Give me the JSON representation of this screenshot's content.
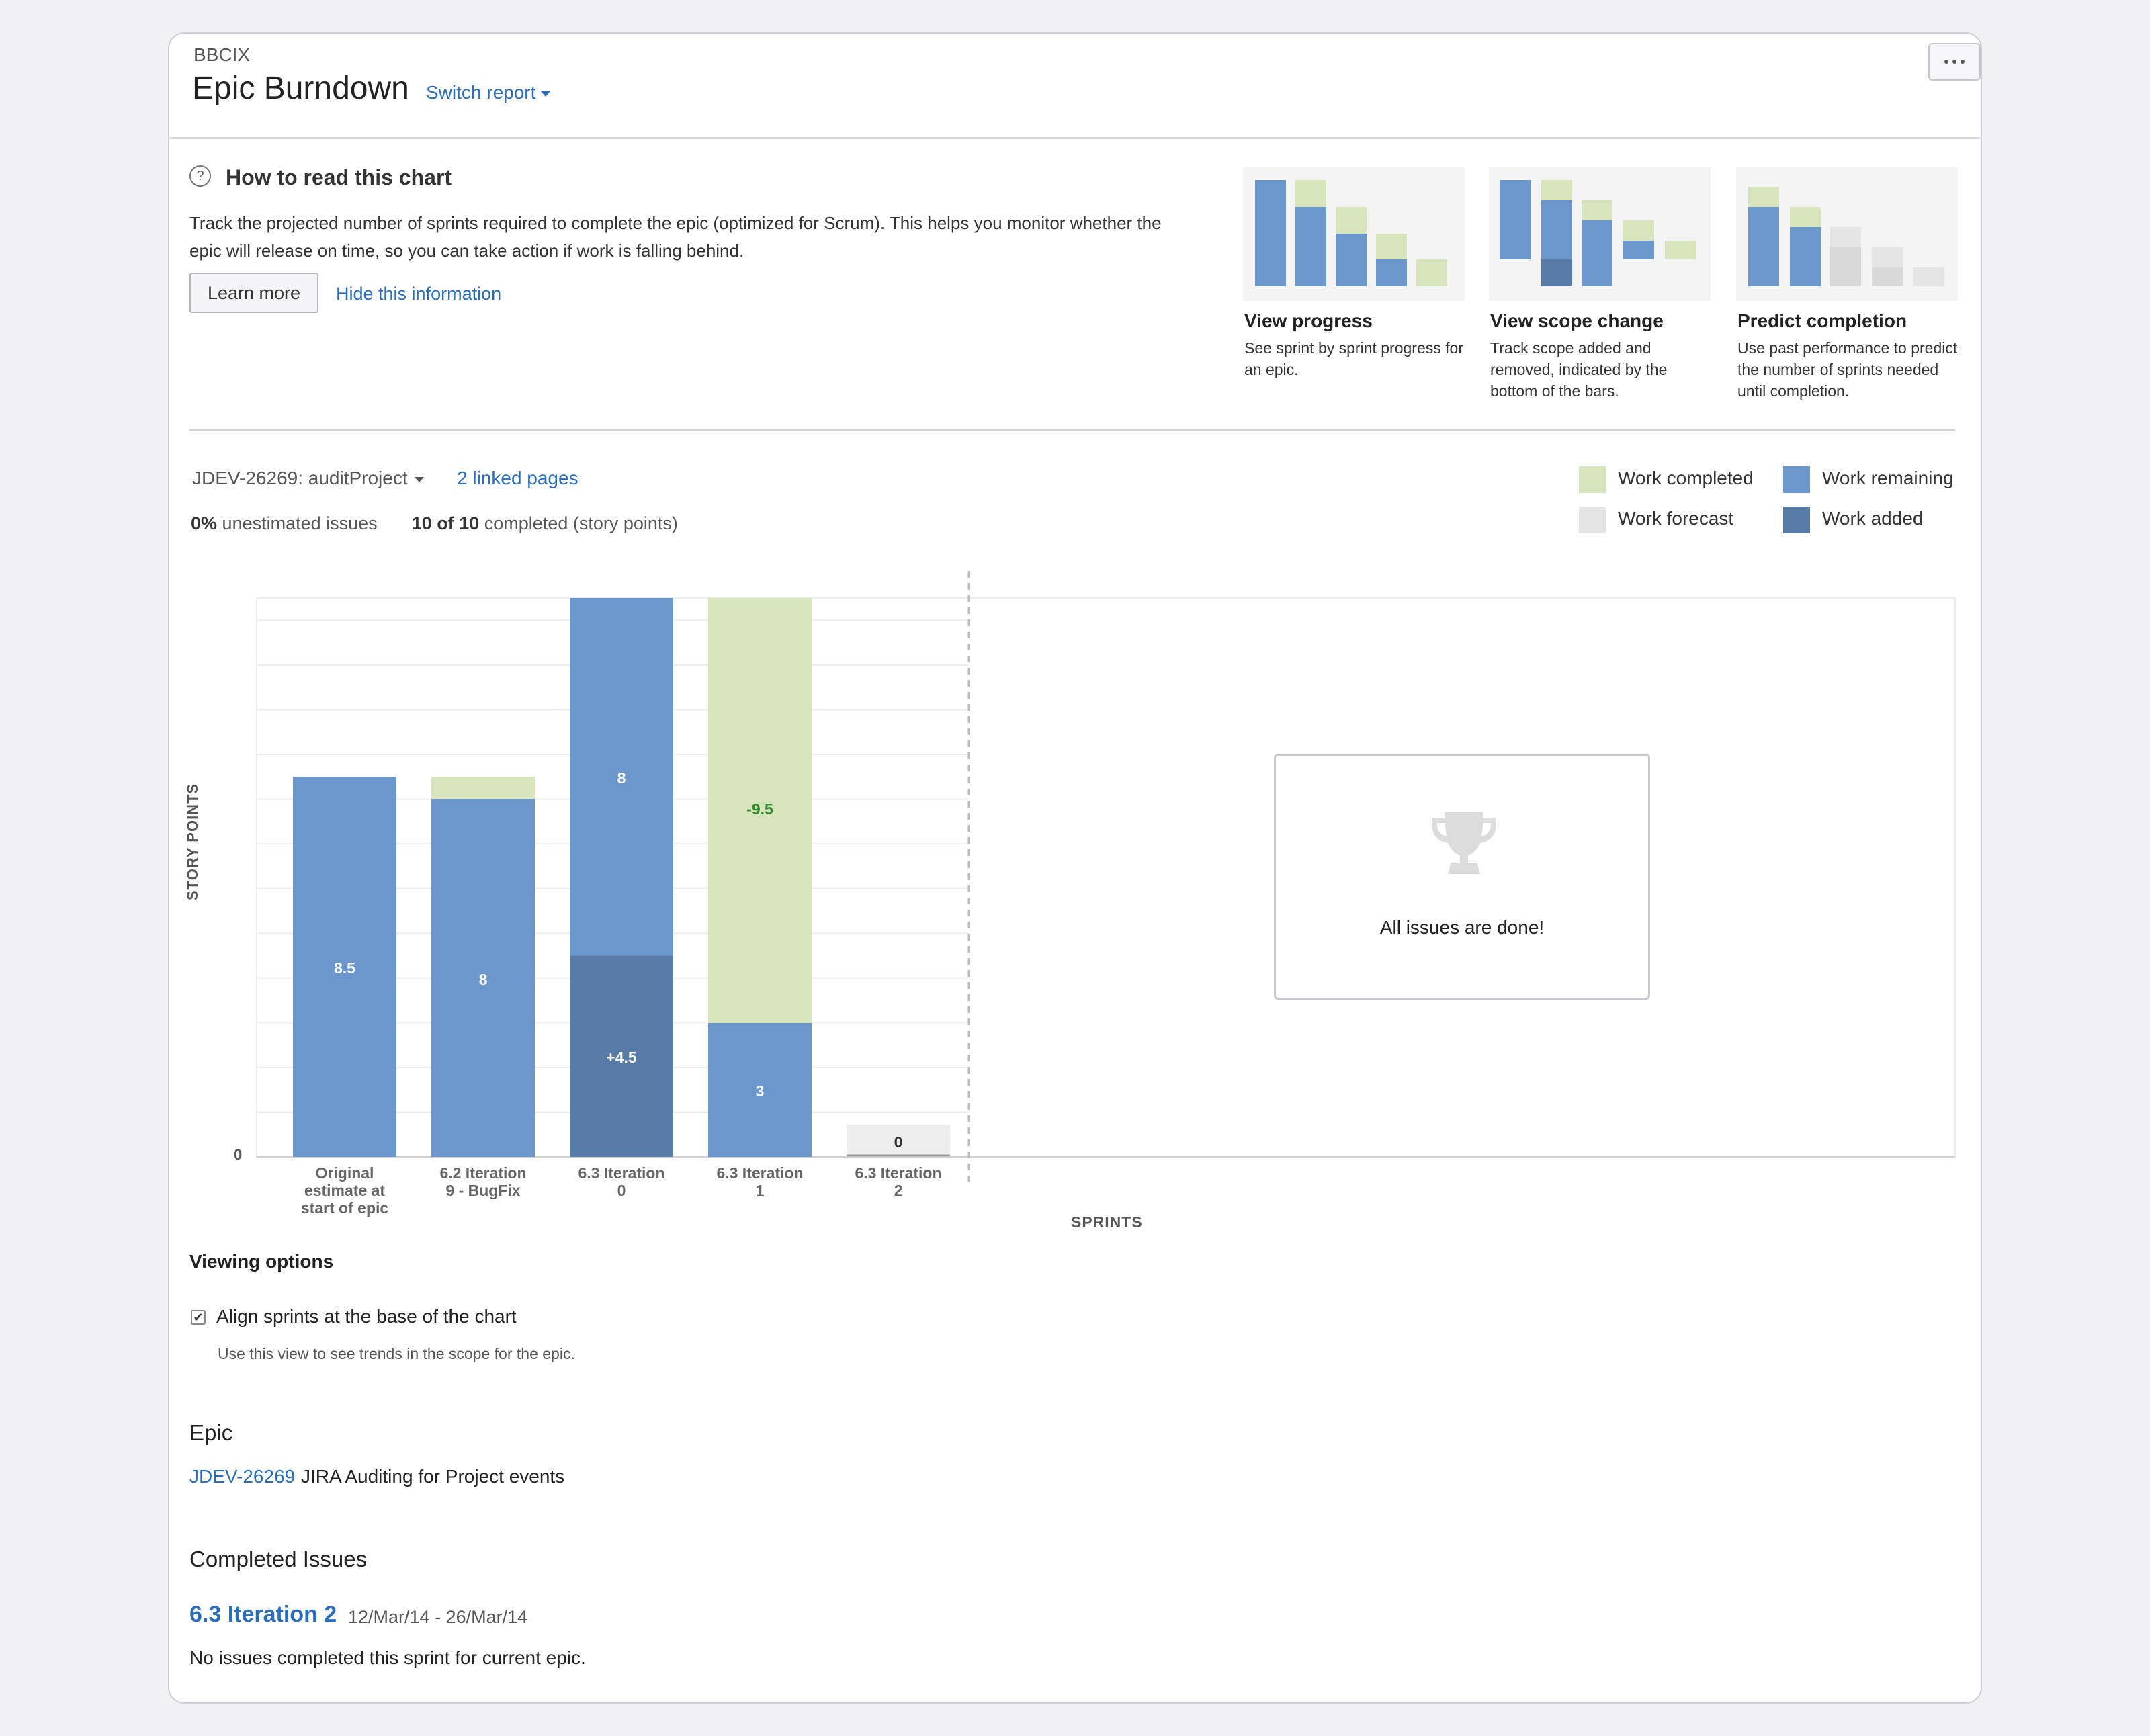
{
  "header": {
    "project_key": "BBCIX",
    "title": "Epic Burndown",
    "switch_report": "Switch report"
  },
  "help": {
    "title": "How to read this chart",
    "description": "Track the projected number of sprints required to complete the epic (optimized for Scrum). This helps you monitor whether the epic will release on time, so you can take action if work is falling behind.",
    "learn_more": "Learn more",
    "hide": "Hide this information",
    "cards": [
      {
        "title": "View progress",
        "description": "See sprint by sprint progress for an epic."
      },
      {
        "title": "View scope change",
        "description": "Track scope added and removed, indicated by the bottom of the bars."
      },
      {
        "title": "Predict completion",
        "description": "Use past performance to predict the number of sprints needed until completion."
      }
    ]
  },
  "epic_selector": {
    "value": "JDEV-26269: auditProject",
    "linked_pages": "2 linked pages"
  },
  "stats": {
    "unestimated_value": "0%",
    "unestimated_label": "unestimated issues",
    "completed_value": "10 of 10",
    "completed_label": "completed (story points)"
  },
  "legend": [
    {
      "label": "Work completed",
      "color": "#d8e4bc"
    },
    {
      "label": "Work remaining",
      "color": "#6b97cc"
    },
    {
      "label": "Work forecast",
      "color": "#e4e4e4"
    },
    {
      "label": "Work added",
      "color": "#587ba8"
    }
  ],
  "chart_data": {
    "type": "bar",
    "ylabel": "STORY POINTS",
    "xlabel": "SPRINTS",
    "y_ticks": [
      "0"
    ],
    "categories": [
      [
        "Original",
        "estimate at",
        "start of epic"
      ],
      [
        "6.2 Iteration",
        "9 - BugFix"
      ],
      [
        "6.3 Iteration",
        "0"
      ],
      [
        "6.3 Iteration",
        "1"
      ],
      [
        "6.3 Iteration",
        "2"
      ]
    ],
    "series": [
      {
        "name": "Work remaining",
        "color": "#6b97cc",
        "values": [
          8.5,
          8,
          8,
          3,
          0
        ],
        "labels": [
          "8.5",
          "8",
          "8",
          "3",
          ""
        ]
      },
      {
        "name": "Work added",
        "color": "#587ba8",
        "values": [
          0,
          0,
          4.5,
          0,
          0
        ],
        "labels": [
          "",
          "",
          "+4.5",
          "",
          ""
        ]
      },
      {
        "name": "Work completed",
        "color": "#d8e4bc",
        "values": [
          0,
          0.5,
          0,
          9.5,
          0
        ],
        "labels": [
          "",
          "",
          "",
          "-9.5",
          ""
        ]
      },
      {
        "name": "Work forecast",
        "color": "#e4e4e4",
        "values": [
          0,
          0,
          0,
          0,
          0
        ],
        "labels": [
          "",
          "",
          "",
          "",
          "0"
        ]
      }
    ],
    "ylim": [
      0,
      12.5
    ],
    "grid": true
  },
  "done_message": "All issues are done!",
  "viewing_options": {
    "title": "Viewing options",
    "align_label": "Align sprints at the base of the chart",
    "align_checked": true,
    "align_help": "Use this view to see trends in the scope for the epic."
  },
  "epic": {
    "heading": "Epic",
    "key": "JDEV-26269",
    "name": "JIRA Auditing for Project events"
  },
  "completed_issues": {
    "heading": "Completed Issues",
    "sprint": "6.3 Iteration 2",
    "dates": "12/Mar/14 - 26/Mar/14",
    "message": "No issues completed this sprint for current epic."
  }
}
